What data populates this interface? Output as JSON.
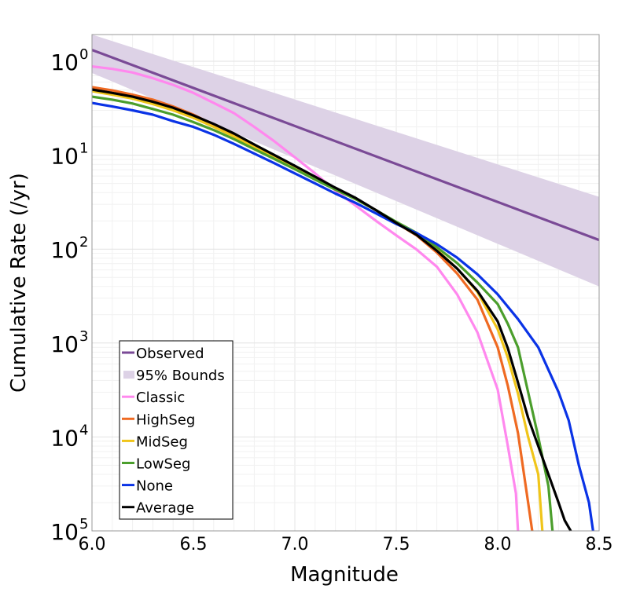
{
  "chart_data": {
    "type": "line",
    "title": "",
    "xlabel": "Magnitude",
    "ylabel": "Cumulative Rate (/yr)",
    "xlim": [
      6.0,
      8.5
    ],
    "ylim": [
      1e-05,
      2
    ],
    "yscale": "log",
    "grid": true,
    "legend_position": "bottom-left",
    "x_ticks": [
      "6.0",
      "6.5",
      "7.0",
      "7.5",
      "8.0",
      "8.5"
    ],
    "y_ticks": [
      {
        "base": "10",
        "exp": "0",
        "value": 1
      },
      {
        "base": "10",
        "exp": "1",
        "value": 0.1
      },
      {
        "base": "10",
        "exp": "2",
        "value": 0.01
      },
      {
        "base": "10",
        "exp": "3",
        "value": 0.001
      },
      {
        "base": "10",
        "exp": "4",
        "value": 0.0001
      },
      {
        "base": "10",
        "exp": "5",
        "value": 1e-05
      }
    ],
    "bounds": {
      "name": "95% Bounds",
      "color": "#ddd2e6",
      "x": [
        6.0,
        8.5
      ],
      "lower": [
        0.75,
        0.004
      ],
      "upper": [
        2.3,
        0.036
      ]
    },
    "series": [
      {
        "name": "Observed",
        "color": "#7a4a96",
        "x": [
          6.0,
          8.5
        ],
        "y": [
          1.32,
          0.0125
        ]
      },
      {
        "name": "Classic",
        "color": "#ff88ee",
        "x": [
          6.0,
          6.1,
          6.2,
          6.3,
          6.4,
          6.5,
          6.6,
          6.7,
          6.8,
          6.9,
          7.0,
          7.1,
          7.2,
          7.3,
          7.4,
          7.5,
          7.6,
          7.7,
          7.8,
          7.9,
          8.0,
          8.05,
          8.09,
          8.1
        ],
        "y": [
          0.88,
          0.83,
          0.76,
          0.66,
          0.56,
          0.46,
          0.36,
          0.28,
          0.2,
          0.14,
          0.095,
          0.064,
          0.042,
          0.029,
          0.02,
          0.014,
          0.0099,
          0.0065,
          0.0033,
          0.0013,
          0.00032,
          8e-05,
          2.5e-05,
          1e-05
        ]
      },
      {
        "name": "HighSeg",
        "color": "#ef6a22",
        "x": [
          6.0,
          6.1,
          6.2,
          6.3,
          6.4,
          6.5,
          6.6,
          6.7,
          6.8,
          6.9,
          7.0,
          7.1,
          7.2,
          7.3,
          7.4,
          7.5,
          7.6,
          7.7,
          7.8,
          7.9,
          8.0,
          8.05,
          8.1,
          8.15,
          8.17
        ],
        "y": [
          0.53,
          0.49,
          0.44,
          0.39,
          0.33,
          0.27,
          0.21,
          0.165,
          0.127,
          0.099,
          0.076,
          0.058,
          0.044,
          0.034,
          0.026,
          0.019,
          0.014,
          0.0092,
          0.0055,
          0.0029,
          0.0009,
          0.00035,
          0.00011,
          2e-05,
          1e-05
        ]
      },
      {
        "name": "MidSeg",
        "color": "#f0c51a",
        "x": [
          6.0,
          6.1,
          6.2,
          6.3,
          6.4,
          6.5,
          6.6,
          6.7,
          6.8,
          6.9,
          7.0,
          7.1,
          7.2,
          7.3,
          7.4,
          7.5,
          7.6,
          7.7,
          7.8,
          7.9,
          8.0,
          8.05,
          8.1,
          8.15,
          8.2,
          8.22
        ],
        "y": [
          0.48,
          0.44,
          0.4,
          0.35,
          0.3,
          0.25,
          0.2,
          0.158,
          0.122,
          0.095,
          0.073,
          0.056,
          0.043,
          0.034,
          0.026,
          0.019,
          0.0145,
          0.0098,
          0.0062,
          0.0035,
          0.0014,
          0.0007,
          0.00029,
          0.0001,
          4e-05,
          1e-05
        ]
      },
      {
        "name": "LowSeg",
        "color": "#4b9e2c",
        "x": [
          6.0,
          6.1,
          6.2,
          6.3,
          6.4,
          6.5,
          6.6,
          6.7,
          6.8,
          6.9,
          7.0,
          7.1,
          7.2,
          7.3,
          7.4,
          7.5,
          7.6,
          7.7,
          7.8,
          7.9,
          8.0,
          8.05,
          8.1,
          8.15,
          8.2,
          8.25,
          8.27
        ],
        "y": [
          0.42,
          0.39,
          0.355,
          0.31,
          0.27,
          0.225,
          0.185,
          0.148,
          0.116,
          0.091,
          0.071,
          0.055,
          0.043,
          0.034,
          0.026,
          0.0195,
          0.0149,
          0.0105,
          0.0071,
          0.0044,
          0.0026,
          0.0016,
          0.0009,
          0.0003,
          0.0001,
          3e-05,
          1e-05
        ]
      },
      {
        "name": "None",
        "color": "#0a33e6",
        "x": [
          6.0,
          6.1,
          6.2,
          6.3,
          6.4,
          6.5,
          6.6,
          6.7,
          6.8,
          6.9,
          7.0,
          7.1,
          7.2,
          7.3,
          7.4,
          7.5,
          7.6,
          7.7,
          7.8,
          7.9,
          8.0,
          8.1,
          8.2,
          8.3,
          8.35,
          8.4,
          8.45,
          8.47
        ],
        "y": [
          0.36,
          0.33,
          0.3,
          0.27,
          0.23,
          0.2,
          0.165,
          0.132,
          0.104,
          0.082,
          0.064,
          0.05,
          0.039,
          0.031,
          0.024,
          0.0185,
          0.0148,
          0.0113,
          0.0081,
          0.0054,
          0.0033,
          0.0018,
          0.0009,
          0.0003,
          0.00015,
          5e-05,
          2e-05,
          1e-05
        ]
      },
      {
        "name": "Average",
        "color": "#000000",
        "x": [
          6.0,
          6.1,
          6.2,
          6.3,
          6.4,
          6.5,
          6.6,
          6.7,
          6.8,
          6.9,
          7.0,
          7.1,
          7.2,
          7.3,
          7.4,
          7.5,
          7.6,
          7.7,
          7.8,
          7.9,
          8.0,
          8.05,
          8.1,
          8.15,
          8.2,
          8.25,
          8.3,
          8.33,
          8.36
        ],
        "y": [
          0.5,
          0.46,
          0.42,
          0.37,
          0.32,
          0.265,
          0.215,
          0.17,
          0.13,
          0.1,
          0.077,
          0.059,
          0.045,
          0.035,
          0.026,
          0.019,
          0.0142,
          0.0096,
          0.0062,
          0.0036,
          0.0017,
          0.00088,
          0.00038,
          0.00016,
          8e-05,
          4e-05,
          2e-05,
          1.3e-05,
          1e-05
        ]
      }
    ],
    "legend": [
      {
        "label": "Observed",
        "color": "#7a4a96",
        "kind": "line"
      },
      {
        "label": "95% Bounds",
        "color": "#ddd2e6",
        "kind": "patch"
      },
      {
        "label": "Classic",
        "color": "#ff88ee",
        "kind": "line"
      },
      {
        "label": "HighSeg",
        "color": "#ef6a22",
        "kind": "line"
      },
      {
        "label": "MidSeg",
        "color": "#f0c51a",
        "kind": "line"
      },
      {
        "label": "LowSeg",
        "color": "#4b9e2c",
        "kind": "line"
      },
      {
        "label": "None",
        "color": "#0a33e6",
        "kind": "line"
      },
      {
        "label": "Average",
        "color": "#000000",
        "kind": "line"
      }
    ]
  }
}
